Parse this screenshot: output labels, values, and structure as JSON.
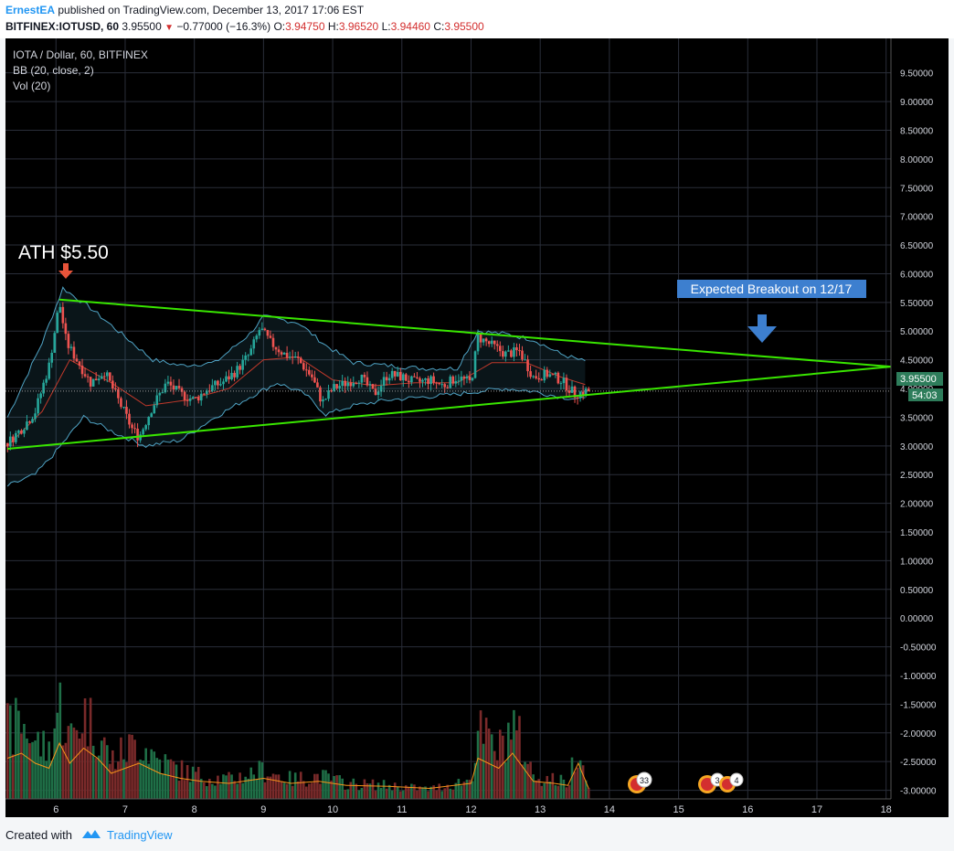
{
  "header": {
    "author": "ErnestEA",
    "published": " published on TradingView.com, December 13, 2017 17:06 EST",
    "symbol": "BITFINEX:IOTUSD, 60",
    "last": "3.95500",
    "change": "−0.77000 (−16.3%)",
    "o_label": "O:",
    "o_value": "3.94750",
    "h_label": "H:",
    "h_value": "3.96520",
    "l_label": "L:",
    "l_value": "3.94460",
    "c_label": "C:",
    "c_value": "3.95500"
  },
  "legend": {
    "title": "IOTA / Dollar, 60, BITFINEX",
    "bb": "BB (20, close, 2)",
    "vol": "Vol (20)"
  },
  "annotations": {
    "ath": "ATH $5.50",
    "breakout": "Expected Breakout on 12/17",
    "price_tag": "3.95500",
    "countdown": "54:03",
    "event_badges": [
      "33",
      "3",
      "4"
    ]
  },
  "colors": {
    "trendline": "#39e600",
    "up": "#26a69a",
    "down": "#ef5350",
    "bb": "#4fa3c4",
    "basis": "#c0392b",
    "arrow": "#3d7fcf",
    "ath_arrow": "#e8543a"
  },
  "footer": {
    "created": "Created with",
    "brand": "TradingView"
  },
  "chart_data": {
    "type": "candlestick",
    "title": "IOTA / Dollar, 60, BITFINEX",
    "ylabel": "",
    "ylim": [
      -3.0,
      9.5
    ],
    "y_ticks": [
      "9.50000",
      "9.00000",
      "8.50000",
      "8.00000",
      "7.50000",
      "7.00000",
      "6.50000",
      "6.00000",
      "5.50000",
      "5.00000",
      "4.50000",
      "4.00000",
      "3.50000",
      "3.00000",
      "2.50000",
      "2.00000",
      "1.50000",
      "1.00000",
      "0.50000",
      "0.00000",
      "-0.50000",
      "-1.00000",
      "-1.50000",
      "-2.00000",
      "-2.50000",
      "-3.00000"
    ],
    "x_ticks": [
      "6",
      "7",
      "8",
      "9",
      "10",
      "11",
      "12",
      "13",
      "14",
      "15",
      "16",
      "17",
      "18"
    ],
    "x_tick_values": [
      6,
      7,
      8,
      9,
      10,
      11,
      12,
      13,
      14,
      15,
      16,
      17,
      18
    ],
    "xlim": [
      5.27,
      18.07
    ],
    "close_path": [
      [
        5.3,
        3.05
      ],
      [
        5.5,
        3.3
      ],
      [
        5.7,
        3.6
      ],
      [
        5.9,
        4.4
      ],
      [
        6.05,
        5.5
      ],
      [
        6.15,
        4.8
      ],
      [
        6.3,
        4.5
      ],
      [
        6.5,
        4.1
      ],
      [
        6.7,
        4.3
      ],
      [
        6.9,
        3.8
      ],
      [
        7.1,
        3.3
      ],
      [
        7.2,
        3.15
      ],
      [
        7.4,
        3.7
      ],
      [
        7.6,
        4.1
      ],
      [
        7.8,
        3.9
      ],
      [
        8.0,
        3.8
      ],
      [
        8.2,
        4.0
      ],
      [
        8.4,
        4.1
      ],
      [
        8.6,
        4.3
      ],
      [
        8.8,
        4.6
      ],
      [
        8.95,
        5.05
      ],
      [
        9.1,
        4.8
      ],
      [
        9.3,
        4.6
      ],
      [
        9.5,
        4.5
      ],
      [
        9.7,
        4.2
      ],
      [
        9.85,
        3.75
      ],
      [
        10.0,
        4.0
      ],
      [
        10.2,
        4.1
      ],
      [
        10.4,
        4.2
      ],
      [
        10.6,
        3.9
      ],
      [
        10.8,
        4.25
      ],
      [
        11.0,
        4.2
      ],
      [
        11.2,
        4.1
      ],
      [
        11.4,
        4.15
      ],
      [
        11.6,
        4.05
      ],
      [
        11.8,
        4.2
      ],
      [
        12.0,
        4.1
      ],
      [
        12.1,
        4.9
      ],
      [
        12.3,
        4.75
      ],
      [
        12.5,
        4.6
      ],
      [
        12.7,
        4.65
      ],
      [
        12.9,
        4.2
      ],
      [
        13.1,
        4.25
      ],
      [
        13.3,
        4.15
      ],
      [
        13.5,
        3.9
      ],
      [
        13.65,
        3.955
      ]
    ],
    "bollinger": {
      "upper": [
        [
          5.3,
          3.5
        ],
        [
          5.8,
          4.8
        ],
        [
          6.1,
          5.75
        ],
        [
          6.5,
          5.4
        ],
        [
          7.0,
          4.9
        ],
        [
          7.4,
          4.5
        ],
        [
          7.8,
          4.4
        ],
        [
          8.3,
          4.45
        ],
        [
          8.8,
          4.95
        ],
        [
          9.0,
          5.25
        ],
        [
          9.5,
          5.15
        ],
        [
          9.9,
          4.75
        ],
        [
          10.3,
          4.45
        ],
        [
          10.8,
          4.4
        ],
        [
          11.3,
          4.35
        ],
        [
          11.8,
          4.35
        ],
        [
          12.1,
          5.0
        ],
        [
          12.5,
          4.95
        ],
        [
          12.9,
          4.85
        ],
        [
          13.3,
          4.6
        ],
        [
          13.7,
          4.45
        ]
      ],
      "lower": [
        [
          5.3,
          2.3
        ],
        [
          5.7,
          2.5
        ],
        [
          6.0,
          2.9
        ],
        [
          6.4,
          3.5
        ],
        [
          6.9,
          3.2
        ],
        [
          7.3,
          3.0
        ],
        [
          7.8,
          3.1
        ],
        [
          8.3,
          3.5
        ],
        [
          8.8,
          3.85
        ],
        [
          9.2,
          4.1
        ],
        [
          9.6,
          3.9
        ],
        [
          9.9,
          3.55
        ],
        [
          10.3,
          3.7
        ],
        [
          10.8,
          3.8
        ],
        [
          11.3,
          3.85
        ],
        [
          11.8,
          3.9
        ],
        [
          12.1,
          3.95
        ],
        [
          12.5,
          4.0
        ],
        [
          12.9,
          3.95
        ],
        [
          13.3,
          3.85
        ],
        [
          13.7,
          3.8
        ]
      ],
      "basis": [
        [
          5.3,
          3.0
        ],
        [
          5.8,
          3.6
        ],
        [
          6.2,
          4.5
        ],
        [
          6.8,
          4.1
        ],
        [
          7.3,
          3.7
        ],
        [
          7.9,
          3.8
        ],
        [
          8.5,
          4.0
        ],
        [
          9.0,
          4.5
        ],
        [
          9.5,
          4.55
        ],
        [
          10.0,
          4.15
        ],
        [
          10.6,
          4.05
        ],
        [
          11.2,
          4.1
        ],
        [
          11.8,
          4.1
        ],
        [
          12.3,
          4.45
        ],
        [
          12.8,
          4.45
        ],
        [
          13.3,
          4.2
        ],
        [
          13.7,
          4.05
        ]
      ]
    },
    "trendlines": [
      {
        "from": [
          6.05,
          5.55
        ],
        "to": [
          18.07,
          4.38
        ]
      },
      {
        "from": [
          5.3,
          2.95
        ],
        "to": [
          18.07,
          4.38
        ]
      }
    ],
    "volume_profile": [
      [
        5.3,
        0.35
      ],
      [
        5.5,
        0.4
      ],
      [
        5.7,
        0.3
      ],
      [
        5.9,
        0.25
      ],
      [
        6.05,
        0.5
      ],
      [
        6.2,
        0.3
      ],
      [
        6.4,
        0.45
      ],
      [
        6.6,
        0.35
      ],
      [
        6.8,
        0.2
      ],
      [
        7.0,
        0.25
      ],
      [
        7.2,
        0.3
      ],
      [
        7.5,
        0.2
      ],
      [
        7.8,
        0.15
      ],
      [
        8.1,
        0.12
      ],
      [
        8.5,
        0.1
      ],
      [
        9.0,
        0.15
      ],
      [
        9.4,
        0.1
      ],
      [
        9.8,
        0.12
      ],
      [
        10.2,
        0.08
      ],
      [
        10.8,
        0.07
      ],
      [
        11.4,
        0.05
      ],
      [
        12.0,
        0.1
      ],
      [
        12.1,
        0.35
      ],
      [
        12.4,
        0.25
      ],
      [
        12.6,
        0.4
      ],
      [
        12.9,
        0.12
      ],
      [
        13.2,
        0.1
      ],
      [
        13.4,
        0.08
      ],
      [
        13.55,
        0.3
      ],
      [
        13.7,
        0.05
      ]
    ],
    "last_price": 3.955
  }
}
